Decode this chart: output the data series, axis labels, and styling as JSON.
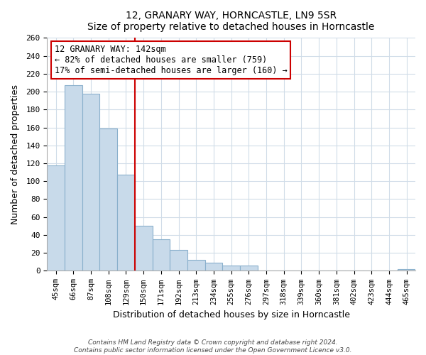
{
  "title": "12, GRANARY WAY, HORNCASTLE, LN9 5SR",
  "subtitle": "Size of property relative to detached houses in Horncastle",
  "xlabel": "Distribution of detached houses by size in Horncastle",
  "ylabel": "Number of detached properties",
  "bar_labels": [
    "45sqm",
    "66sqm",
    "87sqm",
    "108sqm",
    "129sqm",
    "150sqm",
    "171sqm",
    "192sqm",
    "213sqm",
    "234sqm",
    "255sqm",
    "276sqm",
    "297sqm",
    "318sqm",
    "339sqm",
    "360sqm",
    "381sqm",
    "402sqm",
    "423sqm",
    "444sqm",
    "465sqm"
  ],
  "bar_values": [
    118,
    207,
    198,
    159,
    107,
    50,
    35,
    23,
    12,
    9,
    6,
    6,
    0,
    0,
    0,
    0,
    0,
    0,
    0,
    0,
    2
  ],
  "bar_color": "#c8daea",
  "bar_edge_color": "#8ab0cc",
  "vline_x": 4.5,
  "vline_color": "#cc0000",
  "annotation_title": "12 GRANARY WAY: 142sqm",
  "annotation_line1": "← 82% of detached houses are smaller (759)",
  "annotation_line2": "17% of semi-detached houses are larger (160) →",
  "annotation_box_color": "#ffffff",
  "annotation_box_edge": "#cc0000",
  "ylim": [
    0,
    260
  ],
  "yticks": [
    0,
    20,
    40,
    60,
    80,
    100,
    120,
    140,
    160,
    180,
    200,
    220,
    240,
    260
  ],
  "footer1": "Contains HM Land Registry data © Crown copyright and database right 2024.",
  "footer2": "Contains public sector information licensed under the Open Government Licence v3.0.",
  "bg_color": "#ffffff",
  "grid_color": "#d0dce8"
}
